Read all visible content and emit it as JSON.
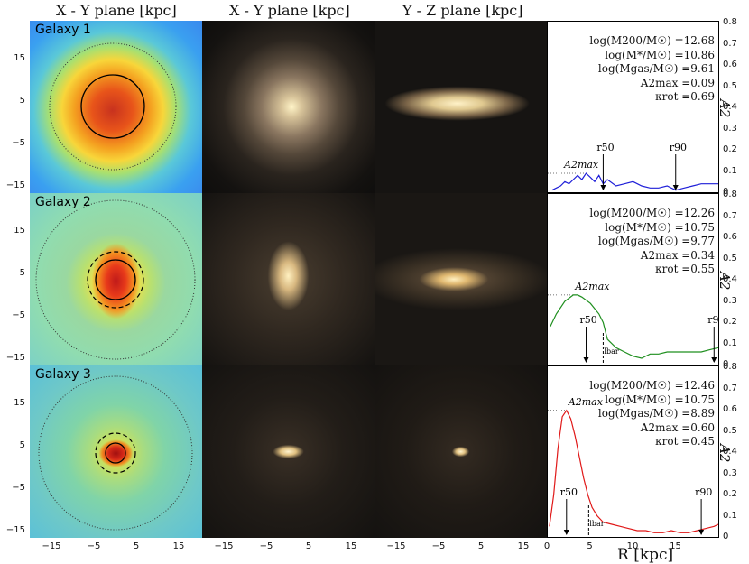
{
  "column_titles": [
    "X - Y plane [kpc]",
    "X - Y plane [kpc]",
    "Y - Z plane [kpc]"
  ],
  "galaxies": [
    {
      "name": "Galaxy 1",
      "stats": [
        "log(M200/M☉) =12.68",
        "log(M*/M☉) =10.86",
        "log(Mgas/M☉) =9.61",
        "A2max =0.09",
        "κrot =0.69"
      ],
      "color": "#1f1fd8"
    },
    {
      "name": "Galaxy 2",
      "stats": [
        "log(M200/M☉) =12.26",
        "log(M*/M☉) =10.75",
        "log(Mgas/M☉) =9.77",
        "A2max =0.34",
        "κrot =0.55"
      ],
      "color": "#1f8f1f"
    },
    {
      "name": "Galaxy 3",
      "stats": [
        "log(M200/M☉) =12.46",
        "log(M*/M☉) =10.75",
        "log(Mgas/M☉) =8.89",
        "A2max =0.60",
        "κrot =0.45"
      ],
      "color": "#e01818"
    }
  ],
  "map_yticks": [
    "15",
    "5",
    "−5",
    "−15"
  ],
  "map_xticks": [
    "−15",
    "−5",
    "5",
    "15"
  ],
  "right_ticks": [
    "0.8",
    "0.7",
    "0.6",
    "0.5",
    "0.4",
    "0.3",
    "0.2",
    "0.1",
    "0"
  ],
  "right_xticks": [
    "0",
    "5",
    "10",
    "15"
  ],
  "xlabel": "R [kpc]",
  "ylabel": "A2",
  "annotations": {
    "a2max": "A2max",
    "r50": "r50",
    "r90": "r90",
    "lbar": "lbar"
  },
  "chart_data": [
    {
      "type": "line",
      "title": "Galaxy 1",
      "xlabel": "R [kpc]",
      "ylabel": "A2",
      "xlim": [
        0,
        20
      ],
      "ylim": [
        0,
        0.8
      ],
      "x": [
        0.5,
        1,
        1.5,
        2,
        2.5,
        3,
        3.5,
        4,
        4.5,
        5,
        5.5,
        6,
        6.5,
        7,
        8,
        9,
        10,
        11,
        12,
        13,
        14,
        15,
        16,
        17,
        18,
        19,
        20
      ],
      "values": [
        0.01,
        0.02,
        0.03,
        0.05,
        0.04,
        0.06,
        0.08,
        0.06,
        0.09,
        0.07,
        0.05,
        0.08,
        0.04,
        0.06,
        0.03,
        0.04,
        0.05,
        0.03,
        0.02,
        0.02,
        0.03,
        0.01,
        0.02,
        0.03,
        0.04,
        0.04,
        0.04
      ],
      "r50": 6.5,
      "r90": 15,
      "a2max": 0.09
    },
    {
      "type": "line",
      "title": "Galaxy 2",
      "xlabel": "R [kpc]",
      "ylabel": "A2",
      "xlim": [
        0,
        20
      ],
      "ylim": [
        0,
        0.8
      ],
      "x": [
        0.3,
        1,
        2,
        3,
        3.5,
        4,
        5,
        6,
        6.5,
        7,
        8,
        9,
        10,
        11,
        12,
        13,
        14,
        15,
        16,
        17,
        18,
        19,
        20
      ],
      "values": [
        0.18,
        0.24,
        0.3,
        0.33,
        0.33,
        0.32,
        0.29,
        0.24,
        0.2,
        0.12,
        0.08,
        0.06,
        0.04,
        0.03,
        0.05,
        0.05,
        0.06,
        0.06,
        0.06,
        0.06,
        0.06,
        0.07,
        0.08
      ],
      "r50": 4.5,
      "r90": 19.5,
      "lbar": 6.5,
      "a2max": 0.34
    },
    {
      "type": "line",
      "title": "Galaxy 3",
      "xlabel": "R [kpc]",
      "ylabel": "A2",
      "xlim": [
        0,
        20
      ],
      "ylim": [
        0,
        0.8
      ],
      "x": [
        0.2,
        0.7,
        1.2,
        1.7,
        2.2,
        2.7,
        3.2,
        3.7,
        4.2,
        4.7,
        5.2,
        5.8,
        6.5,
        7.5,
        8.5,
        9.5,
        10.5,
        11.5,
        12.5,
        13.5,
        14.5,
        15.5,
        16.5,
        17.5,
        18.5,
        19.5,
        20
      ],
      "values": [
        0.05,
        0.2,
        0.42,
        0.57,
        0.6,
        0.56,
        0.48,
        0.38,
        0.28,
        0.2,
        0.14,
        0.1,
        0.07,
        0.06,
        0.05,
        0.04,
        0.03,
        0.03,
        0.02,
        0.02,
        0.03,
        0.02,
        0.02,
        0.03,
        0.04,
        0.05,
        0.06
      ],
      "r50": 2.2,
      "r90": 18,
      "lbar": 4.8,
      "a2max": 0.6
    }
  ]
}
